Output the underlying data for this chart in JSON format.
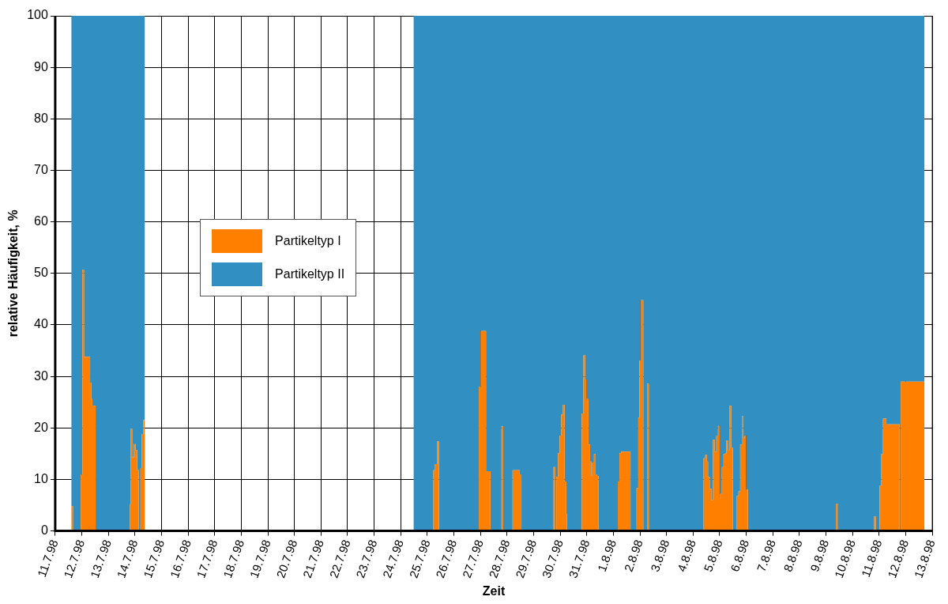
{
  "chart_data": {
    "type": "area",
    "stacked": true,
    "xlabel": "Zeit",
    "ylabel": "relative Häufigkeit, %",
    "legend": "left",
    "grid": true,
    "marker": "none",
    "xlim": [
      "1998-07-11",
      "1998-08-13"
    ],
    "ylim": [
      0,
      100
    ],
    "yticks": [
      0,
      10,
      20,
      30,
      40,
      50,
      60,
      70,
      80,
      90,
      100
    ],
    "xticks": [
      {
        "value": "1998-07-11",
        "label": "11.7.98"
      },
      {
        "value": "1998-07-12",
        "label": "12.7.98"
      },
      {
        "value": "1998-07-13",
        "label": "13.7.98"
      },
      {
        "value": "1998-07-14",
        "label": "14.7.98"
      },
      {
        "value": "1998-07-15",
        "label": "15.7.98"
      },
      {
        "value": "1998-07-16",
        "label": "16.7.98"
      },
      {
        "value": "1998-07-17",
        "label": "17.7.98"
      },
      {
        "value": "1998-07-18",
        "label": "18.7.98"
      },
      {
        "value": "1998-07-19",
        "label": "19.7.98"
      },
      {
        "value": "1998-07-20",
        "label": "20.7.98"
      },
      {
        "value": "1998-07-21",
        "label": "21.7.98"
      },
      {
        "value": "1998-07-22",
        "label": "22.7.98"
      },
      {
        "value": "1998-07-23",
        "label": "23.7.98"
      },
      {
        "value": "1998-07-24",
        "label": "24.7.98"
      },
      {
        "value": "1998-07-25",
        "label": "25.7.98"
      },
      {
        "value": "1998-07-26",
        "label": "26.7.98"
      },
      {
        "value": "1998-07-27",
        "label": "27.7.98"
      },
      {
        "value": "1998-07-28",
        "label": "28.7.98"
      },
      {
        "value": "1998-07-29",
        "label": "29.7.98"
      },
      {
        "value": "1998-07-30",
        "label": "30.7.98"
      },
      {
        "value": "1998-07-31",
        "label": "31.7.98"
      },
      {
        "value": "1998-08-01",
        "label": "1.8.98"
      },
      {
        "value": "1998-08-02",
        "label": "2.8.98"
      },
      {
        "value": "1998-08-03",
        "label": "3.8.98"
      },
      {
        "value": "1998-08-04",
        "label": "4.8.98"
      },
      {
        "value": "1998-08-05",
        "label": "5.8.98"
      },
      {
        "value": "1998-08-06",
        "label": "6.8.98"
      },
      {
        "value": "1998-08-07",
        "label": "7.8.98"
      },
      {
        "value": "1998-08-08",
        "label": "8.8.98"
      },
      {
        "value": "1998-08-09",
        "label": "9.8.98"
      },
      {
        "value": "1998-08-10",
        "label": "10.8.98"
      },
      {
        "value": "1998-08-11",
        "label": "11.8.98"
      },
      {
        "value": "1998-08-12",
        "label": "12.8.98"
      },
      {
        "value": "1998-08-13",
        "label": "13.8.98"
      }
    ],
    "x": [
      "1998-07-11T14:30",
      "1998-07-11T16:00",
      "1998-07-11T23:00",
      "1998-07-12T00:30",
      "1998-07-12T02:00",
      "1998-07-12T07:30",
      "1998-07-12T08:30",
      "1998-07-12T09:30",
      "1998-07-12T12:30",
      "1998-07-13T19:30",
      "1998-07-13T20:00",
      "1998-07-13T21:30",
      "1998-07-13T23:00",
      "1998-07-14T00:30",
      "1998-07-14T02:00",
      "1998-07-14T03:30",
      "1998-07-14T05:00",
      "1998-07-14T06:00",
      "1998-07-14T07:30",
      "1998-07-14T09:00",
      "1998-07-14T10:00",
      "1998-07-24T11:30",
      "1998-07-25T05:30",
      "1998-07-25T07:00",
      "1998-07-25T09:00",
      "1998-07-25T10:30",
      "1998-07-26T22:30",
      "1998-07-27T00:00",
      "1998-07-27T05:00",
      "1998-07-27T09:00",
      "1998-07-27T19:00",
      "1998-07-27T20:30",
      "1998-07-28T05:00",
      "1998-07-28T11:30",
      "1998-07-28T13:00",
      "1998-07-29T18:00",
      "1998-07-29T19:30",
      "1998-07-29T20:30",
      "1998-07-29T22:00",
      "1998-07-29T23:30",
      "1998-07-30T01:00",
      "1998-07-30T02:30",
      "1998-07-30T04:00",
      "1998-07-30T05:30",
      "1998-07-30T06:00",
      "1998-07-30T19:30",
      "1998-07-30T21:00",
      "1998-07-30T22:30",
      "1998-07-31T00:00",
      "1998-07-31T01:30",
      "1998-07-31T03:00",
      "1998-07-31T04:00",
      "1998-07-31T05:00",
      "1998-07-31T06:30",
      "1998-07-31T08:00",
      "1998-07-31T09:30",
      "1998-07-31T10:30",
      "1998-08-01T04:00",
      "1998-08-01T05:30",
      "1998-08-01T07:00",
      "1998-08-01T15:30",
      "1998-08-01T21:00",
      "1998-08-01T22:30",
      "1998-08-01T23:30",
      "1998-08-02T00:30",
      "1998-08-02T03:00",
      "1998-08-02T06:30",
      "1998-08-02T08:00",
      "1998-08-04T09:30",
      "1998-08-04T11:00",
      "1998-08-04T12:30",
      "1998-08-04T13:30",
      "1998-08-04T15:00",
      "1998-08-04T16:30",
      "1998-08-04T18:00",
      "1998-08-04T19:30",
      "1998-08-04T21:00",
      "1998-08-04T22:30",
      "1998-08-05T00:00",
      "1998-08-05T00:30",
      "1998-08-05T02:00",
      "1998-08-05T03:30",
      "1998-08-05T05:00",
      "1998-08-05T06:00",
      "1998-08-05T07:30",
      "1998-08-05T09:00",
      "1998-08-05T10:30",
      "1998-08-05T12:00",
      "1998-08-05T15:30",
      "1998-08-05T17:00",
      "1998-08-05T18:30",
      "1998-08-05T20:00",
      "1998-08-05T21:00",
      "1998-08-05T22:30",
      "1998-08-06T00:00",
      "1998-08-06T01:30",
      "1998-08-09T09:00",
      "1998-08-09T10:30",
      "1998-08-10T19:30",
      "1998-08-10T21:00",
      "1998-08-11T00:30",
      "1998-08-11T02:00",
      "1998-08-11T03:30",
      "1998-08-11T06:30",
      "1998-08-11T18:30",
      "1998-08-11T19:30",
      "1998-08-12T17:00"
    ],
    "series": [
      {
        "name": "Partikeltyp I",
        "color": "#ff8000",
        "values": [
          4.8,
          0,
          10.9,
          50.7,
          33.8,
          28.8,
          25.6,
          24.3,
          0,
          5.2,
          19.8,
          14.3,
          16.9,
          15.7,
          11.8,
          0,
          12.2,
          18.8,
          21.5,
          21.5,
          null,
          0,
          11.8,
          13.0,
          17.4,
          0,
          27.9,
          38.8,
          11.6,
          0,
          20.3,
          0,
          11.8,
          11.0,
          0,
          12.4,
          0,
          10.5,
          15.1,
          18.5,
          22.6,
          24.5,
          9.6,
          3.3,
          0,
          22.8,
          34.1,
          29.4,
          25.6,
          16.8,
          13.5,
          10.8,
          13.3,
          14.9,
          11.0,
          10.7,
          0,
          9.6,
          15.1,
          15.4,
          0,
          8.3,
          22.0,
          33.1,
          44.8,
          0,
          28.6,
          0,
          14.1,
          14.8,
          13.5,
          10.5,
          8.2,
          6.0,
          17.7,
          15.4,
          18.5,
          20.4,
          6.3,
          7.2,
          12.4,
          14.9,
          15.1,
          17.6,
          15.7,
          24.3,
          16.2,
          0,
          6.8,
          7.7,
          16.8,
          22.3,
          18.1,
          18.5,
          8.0,
          0,
          5.3,
          0,
          2.8,
          0,
          8.8,
          14.9,
          21.8,
          20.7,
          0,
          29.0,
          29.0
        ]
      },
      {
        "name": "Partikeltyp II",
        "color": "#3190c1",
        "values": [
          95.2,
          100,
          89.1,
          49.3,
          66.2,
          71.2,
          74.4,
          75.7,
          100,
          94.8,
          80.2,
          85.7,
          83.1,
          84.3,
          88.2,
          100,
          87.8,
          81.2,
          78.5,
          78.5,
          null,
          100,
          88.2,
          87.0,
          82.6,
          100,
          72.1,
          61.2,
          88.4,
          100,
          79.7,
          100,
          88.2,
          89.0,
          100,
          87.6,
          100,
          89.5,
          84.9,
          81.5,
          77.4,
          75.5,
          90.4,
          96.7,
          100,
          77.2,
          65.9,
          70.6,
          74.4,
          83.2,
          86.5,
          89.2,
          86.7,
          85.1,
          89.0,
          89.3,
          100,
          90.4,
          84.9,
          84.6,
          100,
          91.7,
          78.0,
          66.9,
          55.2,
          100,
          71.4,
          100,
          85.9,
          85.2,
          86.5,
          89.5,
          91.8,
          94.0,
          82.3,
          84.6,
          81.5,
          79.6,
          93.7,
          92.8,
          87.6,
          85.1,
          84.9,
          82.4,
          84.3,
          75.7,
          83.8,
          100,
          93.2,
          92.3,
          83.2,
          77.7,
          81.9,
          81.5,
          92.0,
          100,
          94.7,
          100,
          97.2,
          100,
          91.2,
          85.1,
          78.2,
          79.3,
          100,
          71.0,
          71.0
        ]
      }
    ]
  }
}
